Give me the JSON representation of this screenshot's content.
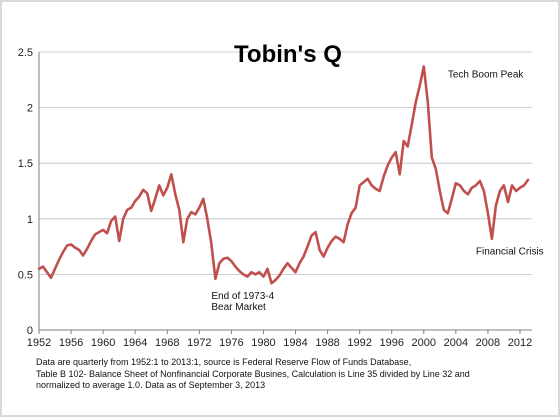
{
  "chart_data": {
    "type": "line",
    "title": "Tobin's Q",
    "xlabel": "",
    "ylabel": "",
    "xlim": [
      1952,
      2013.5
    ],
    "ylim": [
      0,
      2.5
    ],
    "grid": true,
    "legend": "none",
    "colors": {
      "line": "#c0504d",
      "grid": "#bfbfbf",
      "axis": "#7f7f7f"
    },
    "x_ticks": [
      1952,
      1956,
      1960,
      1964,
      1968,
      1972,
      1976,
      1980,
      1984,
      1988,
      1992,
      1996,
      2000,
      2004,
      2008,
      2012
    ],
    "y_ticks": [
      0,
      0.5,
      1,
      1.5,
      2,
      2.5
    ],
    "y_tick_labels": [
      "0",
      "0.5",
      "1",
      "1.5",
      "2",
      "2.5"
    ],
    "series": [
      {
        "x": [
          1952.0,
          1952.5,
          1953.0,
          1953.5,
          1954.0,
          1954.5,
          1955.0,
          1955.5,
          1956.0,
          1956.5,
          1957.0,
          1957.5,
          1958.0,
          1958.5,
          1959.0,
          1959.5,
          1960.0,
          1960.5,
          1961.0,
          1961.5,
          1962.0,
          1962.5,
          1963.0,
          1963.5,
          1964.0,
          1964.5,
          1965.0,
          1965.5,
          1966.0,
          1966.5,
          1967.0,
          1967.5,
          1968.0,
          1968.5,
          1969.0,
          1969.5,
          1970.0,
          1970.5,
          1971.0,
          1971.5,
          1972.0,
          1972.5,
          1973.0,
          1973.5,
          1974.0,
          1974.5,
          1975.0,
          1975.5,
          1976.0,
          1976.5,
          1977.0,
          1977.5,
          1978.0,
          1978.5,
          1979.0,
          1979.5,
          1980.0,
          1980.5,
          1981.0,
          1981.5,
          1982.0,
          1982.5,
          1983.0,
          1983.5,
          1984.0,
          1984.5,
          1985.0,
          1985.5,
          1986.0,
          1986.5,
          1987.0,
          1987.5,
          1988.0,
          1988.5,
          1989.0,
          1989.5,
          1990.0,
          1990.5,
          1991.0,
          1991.5,
          1992.0,
          1992.5,
          1993.0,
          1993.5,
          1994.0,
          1994.5,
          1995.0,
          1995.5,
          1996.0,
          1996.5,
          1997.0,
          1997.5,
          1998.0,
          1998.5,
          1999.0,
          1999.5,
          2000.0,
          2000.5,
          2001.0,
          2001.5,
          2002.0,
          2002.5,
          2003.0,
          2003.5,
          2004.0,
          2004.5,
          2005.0,
          2005.5,
          2006.0,
          2006.5,
          2007.0,
          2007.5,
          2008.0,
          2008.5,
          2009.0,
          2009.5,
          2010.0,
          2010.5,
          2011.0,
          2011.5,
          2012.0,
          2012.5,
          2013.0
        ],
        "y": [
          0.55,
          0.57,
          0.52,
          0.47,
          0.55,
          0.63,
          0.7,
          0.76,
          0.77,
          0.74,
          0.72,
          0.67,
          0.73,
          0.8,
          0.86,
          0.88,
          0.9,
          0.87,
          0.98,
          1.02,
          0.8,
          1.0,
          1.08,
          1.1,
          1.16,
          1.2,
          1.26,
          1.23,
          1.07,
          1.18,
          1.3,
          1.21,
          1.28,
          1.4,
          1.22,
          1.08,
          0.79,
          1.0,
          1.06,
          1.04,
          1.1,
          1.18,
          1.0,
          0.78,
          0.46,
          0.6,
          0.64,
          0.65,
          0.62,
          0.57,
          0.53,
          0.5,
          0.48,
          0.52,
          0.5,
          0.52,
          0.48,
          0.55,
          0.42,
          0.45,
          0.49,
          0.55,
          0.6,
          0.56,
          0.52,
          0.6,
          0.66,
          0.75,
          0.85,
          0.88,
          0.72,
          0.66,
          0.74,
          0.8,
          0.84,
          0.82,
          0.79,
          0.95,
          1.05,
          1.1,
          1.3,
          1.33,
          1.36,
          1.3,
          1.27,
          1.25,
          1.38,
          1.48,
          1.55,
          1.6,
          1.4,
          1.7,
          1.65,
          1.85,
          2.05,
          2.2,
          2.37,
          2.05,
          1.55,
          1.45,
          1.25,
          1.08,
          1.05,
          1.18,
          1.32,
          1.3,
          1.25,
          1.22,
          1.28,
          1.3,
          1.34,
          1.25,
          1.05,
          0.82,
          1.12,
          1.25,
          1.3,
          1.15,
          1.3,
          1.25,
          1.28,
          1.3,
          1.35
        ]
      }
    ],
    "annotations": [
      {
        "text": "Tech Boom Peak",
        "x": 2003,
        "y": 2.27
      },
      {
        "text": "Financial Crisis",
        "x": 2006.5,
        "y": 0.68
      },
      {
        "text": "End of 1973-4",
        "x": 1973.5,
        "y": 0.28
      },
      {
        "text": "Bear Market",
        "x": 1973.5,
        "y": 0.18
      }
    ],
    "footnote_lines": [
      "Data are quarterly from 1952:1 to 2013:1, source is Federal Reserve Flow of Funds Database,",
      "Table B 102- Balance Sheet of Nonfinancial Corporate Busines, Calculation is Line 35 divided by Line 32 and",
      "normalized to average 1.0. Data  as of September 3, 2013"
    ]
  }
}
